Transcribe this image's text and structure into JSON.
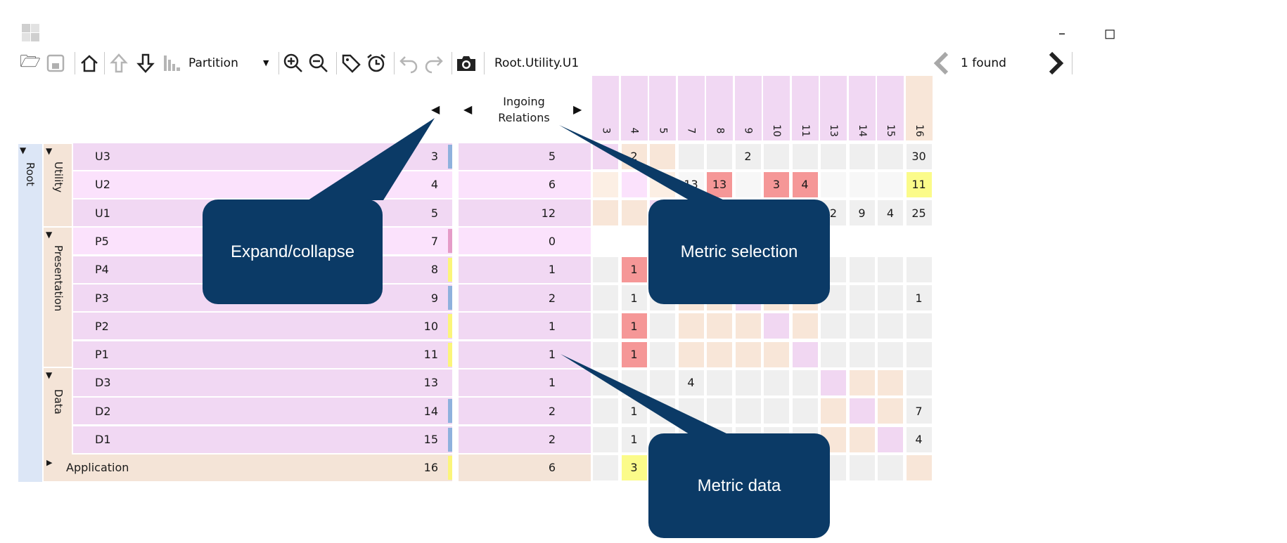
{
  "toolbar": {
    "view_mode": "Partition",
    "selected_path": "Root.Utility.U1",
    "search_result": "1 found"
  },
  "header": {
    "metric_label_line1": "Ingoing",
    "metric_label_line2": "Relations",
    "columns": [
      "3",
      "4",
      "5",
      "7",
      "8",
      "9",
      "10",
      "11",
      "13",
      "14",
      "15",
      "16"
    ]
  },
  "tree": {
    "root_label": "Root",
    "groups": [
      "Utility",
      "Presentation",
      "Data"
    ]
  },
  "rows": [
    {
      "label": "U3",
      "id": "3",
      "metric": "5",
      "indent": 1,
      "marker": "#8fb1dd",
      "bg": "#f1d8f3",
      "cells": [
        "",
        "2",
        "",
        "",
        "",
        "2",
        "",
        "",
        "",
        "",
        "",
        "30"
      ],
      "colors": [
        "#f1d7f2",
        "#f8e6d8",
        "#f8e6d8",
        "#efefef",
        "#efefef",
        "#efefef",
        "#efefef",
        "#efefef",
        "#efefef",
        "#efefef",
        "#efefef",
        "#efefef"
      ]
    },
    {
      "label": "U2",
      "id": "4",
      "metric": "6",
      "indent": 1,
      "marker": "",
      "bg": "#fbe2fc",
      "cells": [
        "",
        "",
        "",
        "13",
        "13",
        "",
        "3",
        "4",
        "",
        "",
        "",
        "11"
      ],
      "colors": [
        "#fcefe4",
        "#fbe2fc",
        "#fcefe4",
        "#f7f7f7",
        "#f59797",
        "#f7f7f7",
        "#f59797",
        "#f59797",
        "#f7f7f7",
        "#f7f7f7",
        "#f7f7f7",
        "#fbfb8a"
      ]
    },
    {
      "label": "U1",
      "id": "5",
      "metric": "12",
      "indent": 1,
      "marker": "",
      "bg": "#f1d8f3",
      "cells": [
        "",
        "",
        "",
        "",
        "",
        "",
        "",
        "",
        "2",
        "9",
        "4",
        "25"
      ],
      "colors": [
        "#f8e6d8",
        "#f8e6d8",
        "#f1d7f2",
        "#efefef",
        "#efefef",
        "#efefef",
        "#efefef",
        "#efefef",
        "#efefef",
        "#efefef",
        "#efefef",
        "#efefef"
      ]
    },
    {
      "label": "P5",
      "id": "7",
      "metric": "0",
      "indent": 1,
      "marker": "#e59cc8",
      "bg": "#fbe2fc",
      "cells": [
        "",
        "",
        "",
        "",
        "",
        "",
        "",
        "",
        "",
        "",
        "",
        ""
      ],
      "colors": [
        "#ffffff",
        "#ffffff",
        "#ffffff",
        "#ffffff",
        "#ffffff",
        "#ffffff",
        "#ffffff",
        "#ffffff",
        "#ffffff",
        "#ffffff",
        "#ffffff",
        "#ffffff"
      ]
    },
    {
      "label": "P4",
      "id": "8",
      "metric": "1",
      "indent": 1,
      "marker": "#fbf57a",
      "bg": "#f1d8f3",
      "cells": [
        "",
        "1",
        "",
        "",
        "",
        "",
        "",
        "",
        "",
        "",
        "",
        ""
      ],
      "colors": [
        "#efefef",
        "#f59797",
        "#efefef",
        "#efefef",
        "#efefef",
        "#efefef",
        "#efefef",
        "#efefef",
        "#efefef",
        "#efefef",
        "#efefef",
        "#efefef"
      ]
    },
    {
      "label": "P3",
      "id": "9",
      "metric": "2",
      "indent": 1,
      "marker": "#8fb1dd",
      "bg": "#f1d8f3",
      "cells": [
        "",
        "1",
        "",
        "",
        "",
        "",
        "",
        "",
        "",
        "",
        "",
        "1"
      ],
      "colors": [
        "#efefef",
        "#efefef",
        "#efefef",
        "#f8e6d8",
        "#f8e6d8",
        "#f1d7f2",
        "#f8e6d8",
        "#f8e6d8",
        "#efefef",
        "#efefef",
        "#efefef",
        "#efefef"
      ]
    },
    {
      "label": "P2",
      "id": "10",
      "metric": "1",
      "indent": 1,
      "marker": "#fbf57a",
      "bg": "#f1d8f3",
      "cells": [
        "",
        "1",
        "",
        "",
        "",
        "",
        "",
        "",
        "",
        "",
        "",
        ""
      ],
      "colors": [
        "#efefef",
        "#f59797",
        "#efefef",
        "#f8e6d8",
        "#f8e6d8",
        "#f8e6d8",
        "#f1d7f2",
        "#f8e6d8",
        "#efefef",
        "#efefef",
        "#efefef",
        "#efefef"
      ]
    },
    {
      "label": "P1",
      "id": "11",
      "metric": "1",
      "indent": 1,
      "marker": "#fbf57a",
      "bg": "#f1d8f3",
      "cells": [
        "",
        "1",
        "",
        "",
        "",
        "",
        "",
        "",
        "",
        "",
        "",
        ""
      ],
      "colors": [
        "#efefef",
        "#f59797",
        "#efefef",
        "#f8e6d8",
        "#f8e6d8",
        "#f8e6d8",
        "#f8e6d8",
        "#f1d7f2",
        "#efefef",
        "#efefef",
        "#efefef",
        "#efefef"
      ]
    },
    {
      "label": "D3",
      "id": "13",
      "metric": "1",
      "indent": 1,
      "marker": "",
      "bg": "#f1d8f3",
      "cells": [
        "",
        "",
        "",
        "4",
        "",
        "",
        "",
        "",
        "",
        "",
        "",
        ""
      ],
      "colors": [
        "#efefef",
        "#efefef",
        "#efefef",
        "#efefef",
        "#efefef",
        "#efefef",
        "#efefef",
        "#efefef",
        "#f1d7f2",
        "#f8e6d8",
        "#f8e6d8",
        "#efefef"
      ]
    },
    {
      "label": "D2",
      "id": "14",
      "metric": "2",
      "indent": 1,
      "marker": "#8fb1dd",
      "bg": "#f1d8f3",
      "cells": [
        "",
        "1",
        "",
        "",
        "",
        "",
        "",
        "",
        "",
        "",
        "",
        "7"
      ],
      "colors": [
        "#efefef",
        "#efefef",
        "#efefef",
        "#efefef",
        "#efefef",
        "#efefef",
        "#efefef",
        "#efefef",
        "#f8e6d8",
        "#f1d7f2",
        "#f8e6d8",
        "#efefef"
      ]
    },
    {
      "label": "D1",
      "id": "15",
      "metric": "2",
      "indent": 1,
      "marker": "#8fb1dd",
      "bg": "#f1d8f3",
      "cells": [
        "",
        "1",
        "",
        "",
        "",
        "",
        "",
        "",
        "",
        "",
        "",
        "4"
      ],
      "colors": [
        "#efefef",
        "#efefef",
        "#efefef",
        "#efefef",
        "#efefef",
        "#efefef",
        "#efefef",
        "#efefef",
        "#f8e6d8",
        "#f8e6d8",
        "#f1d7f2",
        "#efefef"
      ]
    },
    {
      "label": "Application",
      "id": "16",
      "metric": "6",
      "indent": 0,
      "marker": "#fbf57a",
      "bg": "#f4e4d7",
      "cells": [
        "",
        "3",
        "",
        "",
        "",
        "",
        "",
        "",
        "",
        "",
        "",
        ""
      ],
      "colors": [
        "#efefef",
        "#fbfb8a",
        "#efefef",
        "#efefef",
        "#efefef",
        "#efefef",
        "#efefef",
        "#efefef",
        "#efefef",
        "#efefef",
        "#efefef",
        "#f8e6d8"
      ]
    }
  ],
  "callouts": {
    "expand": "Expand/collapse",
    "metric_selection": "Metric selection",
    "metric_data": "Metric data"
  },
  "colors": {
    "callout_bg": "#0b3a66",
    "highlight_red": "#f59797",
    "highlight_yellow": "#fbfb8a",
    "root_band": "#dce6f6",
    "group_band": "#f4e4d7"
  }
}
